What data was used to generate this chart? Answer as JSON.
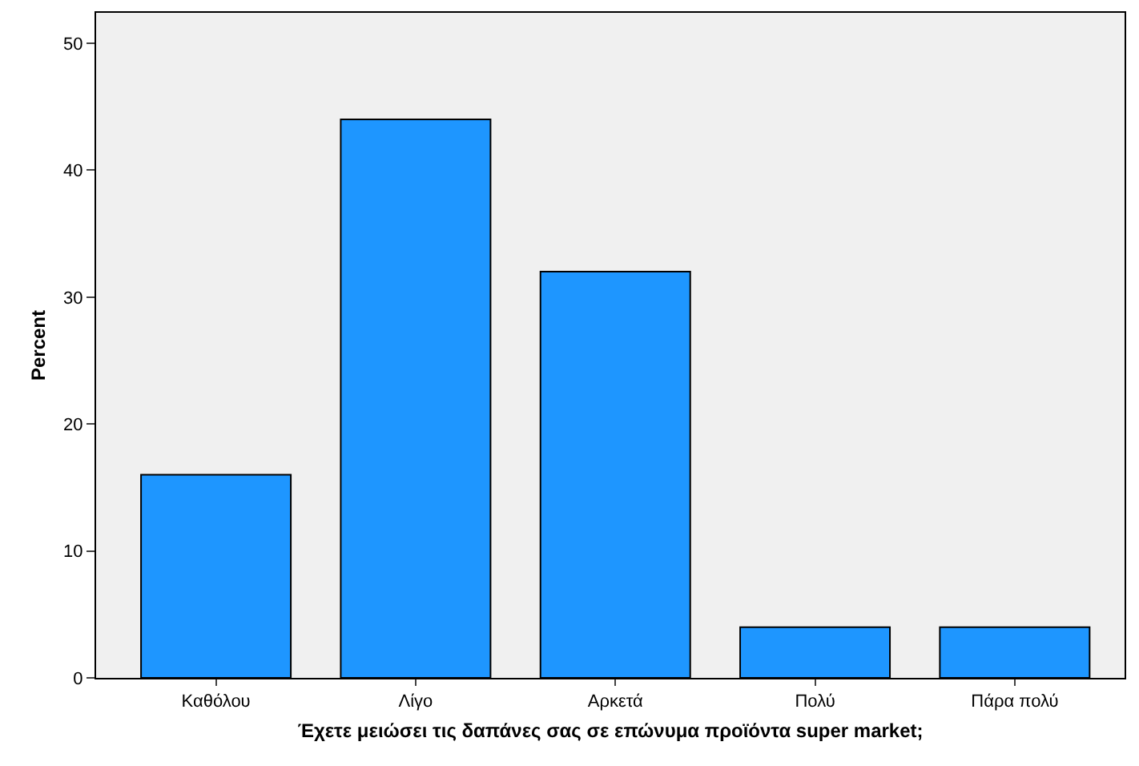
{
  "chart_data": {
    "type": "bar",
    "xlabel": "Έχετε μειώσει τις δαπάνες σας σε επώνυμα προϊόντα super market;",
    "ylabel": "Percent",
    "categories": [
      "Καθόλου",
      "Λίγο",
      "Αρκετά",
      "Πολύ",
      "Πάρα πολύ"
    ],
    "values": [
      16,
      44,
      32,
      4,
      4
    ],
    "color": "#1e96ff",
    "ylim": [
      0,
      52.4
    ],
    "yticks": [
      0,
      10,
      20,
      30,
      40,
      50
    ],
    "grid": false,
    "legend": false
  }
}
